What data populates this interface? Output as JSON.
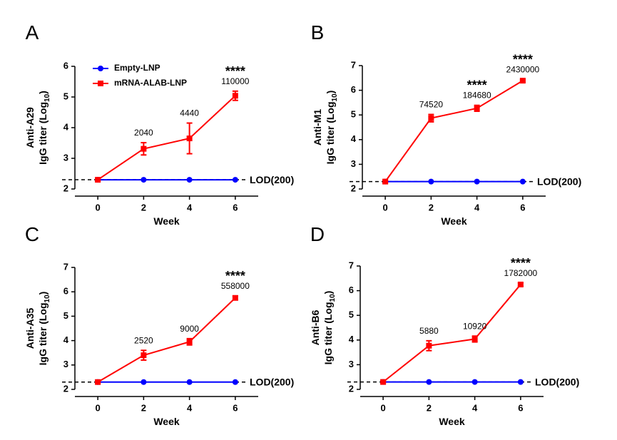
{
  "chart_data": [
    {
      "type": "line",
      "panel": "A",
      "ylabel": "Anti-A29",
      "ylabel2": {
        "text": "IgG titer (Log",
        "sub": "10",
        "end": ")"
      },
      "xlabel": "Week",
      "x": [
        0,
        2,
        4,
        6
      ],
      "xlim": [
        -1,
        7
      ],
      "xticks": [
        0,
        2,
        4,
        6
      ],
      "ylim": [
        2,
        6
      ],
      "yticks": [
        2,
        3,
        4,
        5,
        6
      ],
      "legend": true,
      "series": [
        {
          "name": "Empty-LNP",
          "color": "#0000ff",
          "marker": "circle",
          "values": [
            2.3,
            2.3,
            2.3,
            2.3
          ]
        },
        {
          "name": "mRNA-ALAB-LNP",
          "color": "#ff0000",
          "marker": "square",
          "values": [
            2.3,
            3.31,
            3.65,
            5.04
          ],
          "errors": [
            0.03,
            0.2,
            0.5,
            0.15
          ]
        }
      ],
      "annotations": [
        {
          "x": 2,
          "text": "2040"
        },
        {
          "x": 4,
          "text": "4440"
        },
        {
          "x": 6,
          "text": "110000"
        }
      ],
      "significance": {
        "x": 6,
        "text": "****"
      },
      "lod": {
        "value": 2.301,
        "label": "LOD(200)"
      }
    },
    {
      "type": "line",
      "panel": "B",
      "ylabel": "Anti-M1",
      "ylabel2": {
        "text": "IgG titer (Log",
        "sub": "10",
        "end": ")"
      },
      "xlabel": "Week",
      "x": [
        0,
        2,
        4,
        6
      ],
      "xlim": [
        -1,
        7
      ],
      "xticks": [
        0,
        2,
        4,
        6
      ],
      "ylim": [
        2,
        7
      ],
      "yticks": [
        2,
        3,
        4,
        5,
        6,
        7
      ],
      "legend": false,
      "series": [
        {
          "color": "#0000ff",
          "marker": "circle",
          "values": [
            2.3,
            2.3,
            2.3,
            2.3
          ]
        },
        {
          "color": "#ff0000",
          "marker": "square",
          "values": [
            2.3,
            4.87,
            5.27,
            6.39
          ],
          "errors": [
            0.05,
            0.15,
            0.12,
            0.04
          ]
        }
      ],
      "annotations": [
        {
          "x": 2,
          "text": "74520"
        },
        {
          "x": 4,
          "text": "184680"
        },
        {
          "x": 6,
          "text": "2430000"
        }
      ],
      "significance": {
        "x": 4,
        "text": "****"
      },
      "significance2": {
        "x": 6,
        "text": "****"
      },
      "lod": {
        "value": 2.301,
        "label": "LOD(200)"
      }
    },
    {
      "type": "line",
      "panel": "C",
      "ylabel": "Anti-A35",
      "ylabel2": {
        "text": "IgG titer (Log",
        "sub": "10",
        "end": ")"
      },
      "xlabel": "Week",
      "x": [
        0,
        2,
        4,
        6
      ],
      "xlim": [
        -1,
        7
      ],
      "xticks": [
        0,
        2,
        4,
        6
      ],
      "ylim": [
        2,
        7
      ],
      "yticks": [
        2,
        3,
        4,
        5,
        6,
        7
      ],
      "legend": false,
      "series": [
        {
          "color": "#0000ff",
          "marker": "circle",
          "values": [
            2.3,
            2.3,
            2.3,
            2.3
          ]
        },
        {
          "color": "#ff0000",
          "marker": "square",
          "values": [
            2.3,
            3.4,
            3.95,
            5.75
          ],
          "errors": [
            0.03,
            0.2,
            0.13,
            0.08
          ]
        }
      ],
      "annotations": [
        {
          "x": 2,
          "text": "2520"
        },
        {
          "x": 4,
          "text": "9000"
        },
        {
          "x": 6,
          "text": "558000"
        }
      ],
      "significance": {
        "x": 6,
        "text": "****"
      },
      "lod": {
        "value": 2.301,
        "label": "LOD(200)"
      }
    },
    {
      "type": "line",
      "panel": "D",
      "ylabel": "Anti-B6",
      "ylabel2": {
        "text": "IgG titer (Log",
        "sub": "10",
        "end": ")"
      },
      "xlabel": "Week",
      "x": [
        0,
        2,
        4,
        6
      ],
      "xlim": [
        -1,
        7
      ],
      "xticks": [
        0,
        2,
        4,
        6
      ],
      "ylim": [
        2,
        7
      ],
      "yticks": [
        2,
        3,
        4,
        5,
        6,
        7
      ],
      "legend": false,
      "series": [
        {
          "color": "#0000ff",
          "marker": "circle",
          "values": [
            2.3,
            2.3,
            2.3,
            2.3
          ]
        },
        {
          "color": "#ff0000",
          "marker": "square",
          "values": [
            2.3,
            3.77,
            4.04,
            6.25
          ],
          "errors": [
            0.03,
            0.2,
            0.12,
            0.06
          ]
        }
      ],
      "annotations": [
        {
          "x": 2,
          "text": "5880"
        },
        {
          "x": 4,
          "text": "10920"
        },
        {
          "x": 6,
          "text": "1782000"
        }
      ],
      "significance": {
        "x": 6,
        "text": "****"
      },
      "lod": {
        "value": 2.301,
        "label": "LOD(200)"
      }
    }
  ]
}
